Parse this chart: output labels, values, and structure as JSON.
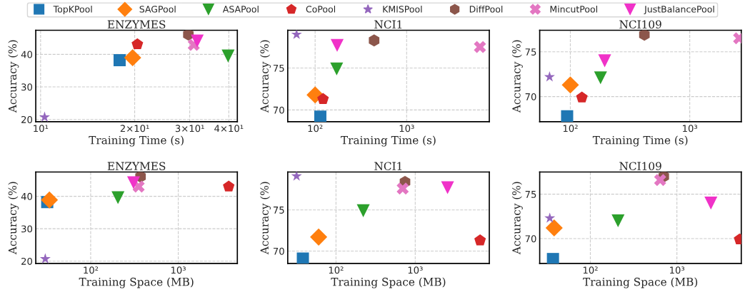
{
  "chart_data": [
    {
      "type": "scatter",
      "title": "ENZYMES",
      "xlabel": "Training Time (s)",
      "ylabel": "Accuracy (%)",
      "log": "x",
      "grid": true,
      "legend": "top",
      "xlim": [
        9.65,
        42.6
      ],
      "xticks": [
        {
          "value": 10,
          "label": "10¹"
        },
        {
          "value": 20,
          "label": "2×10¹"
        },
        {
          "value": 30,
          "label": "3×10¹"
        },
        {
          "value": 40,
          "label": "4×10¹"
        }
      ],
      "ylim": [
        19.3,
        47.4
      ],
      "yticks": [
        20,
        30,
        40
      ],
      "series": [
        {
          "name": "TopKPool",
          "color": "#1f77b4",
          "marker": "square",
          "x": [
            17.9
          ],
          "values": [
            38.2
          ]
        },
        {
          "name": "SAGPool",
          "color": "#ff7f0e",
          "marker": "diamond",
          "x": [
            19.7
          ],
          "values": [
            39.0
          ]
        },
        {
          "name": "ASAPool",
          "color": "#2ca02c",
          "marker": "triangle",
          "x": [
            39.8
          ],
          "values": [
            39.5
          ]
        },
        {
          "name": "CoPool",
          "color": "#d62728",
          "x": [
            20.4
          ],
          "values": [
            43.1
          ]
        },
        {
          "name": "KMISPool",
          "color": "#9467bd",
          "marker": "star",
          "x": [
            10.3
          ],
          "values": [
            20.7
          ]
        },
        {
          "name": "DiffPool",
          "color": "#8c564b",
          "x": [
            29.7
          ],
          "values": [
            46.1
          ]
        },
        {
          "name": "MincutPool",
          "color": "#e377c2",
          "marker": "cross",
          "x": [
            30.9
          ],
          "values": [
            42.9
          ]
        },
        {
          "name": "JustBalancePool",
          "color": "#f032c8",
          "marker": "triangle",
          "x": [
            31.7
          ],
          "values": [
            44.1
          ]
        }
      ]
    },
    {
      "type": "scatter",
      "title": "NCI1",
      "xlabel": "Training Time (s)",
      "ylabel": "Accuracy (%)",
      "log": "x",
      "grid": true,
      "xlim": [
        50.2,
        8000
      ],
      "xticks": [
        {
          "value": 100,
          "label": "10²"
        },
        {
          "value": 1000,
          "label": "10³"
        }
      ],
      "ylim": [
        68.6,
        79.5
      ],
      "yticks": [
        70,
        75
      ],
      "series": [
        {
          "color": "#1f77b4",
          "marker": "square",
          "x": [
            114
          ],
          "values": [
            69.2
          ]
        },
        {
          "color": "#ff7f0e",
          "marker": "diamond",
          "x": [
            100
          ],
          "values": [
            71.8
          ]
        },
        {
          "color": "#2ca02c",
          "marker": "triangle",
          "x": [
            172
          ],
          "values": [
            74.9
          ]
        },
        {
          "color": "#d62728",
          "x": [
            122
          ],
          "values": [
            71.3
          ]
        },
        {
          "color": "#9467bd",
          "marker": "star",
          "x": [
            62.7
          ],
          "values": [
            79.0
          ]
        },
        {
          "color": "#8c564b",
          "x": [
            441
          ],
          "values": [
            78.3
          ]
        },
        {
          "color": "#e377c2",
          "marker": "cross",
          "x": [
            6320
          ],
          "values": [
            77.5
          ]
        },
        {
          "color": "#f032c8",
          "marker": "triangle",
          "x": [
            174
          ],
          "values": [
            77.7
          ]
        }
      ]
    },
    {
      "type": "scatter",
      "title": "NCI109",
      "xlabel": "Training Time (s)",
      "ylabel": "Accuracy (%)",
      "log": "x",
      "grid": true,
      "xlim": [
        55.4,
        2700
      ],
      "xticks": [
        {
          "value": 100,
          "label": "10²"
        },
        {
          "value": 1000,
          "label": "10³"
        }
      ],
      "ylim": [
        67.2,
        77.4
      ],
      "yticks": [
        70,
        75
      ],
      "series": [
        {
          "color": "#1f77b4",
          "marker": "square",
          "x": [
            94
          ],
          "values": [
            67.8
          ]
        },
        {
          "color": "#ff7f0e",
          "marker": "diamond",
          "x": [
            100
          ],
          "values": [
            71.3
          ]
        },
        {
          "color": "#2ca02c",
          "marker": "triangle",
          "x": [
            179
          ],
          "values": [
            72.1
          ]
        },
        {
          "color": "#d62728",
          "x": [
            125
          ],
          "values": [
            69.9
          ]
        },
        {
          "color": "#9467bd",
          "marker": "star",
          "x": [
            67
          ],
          "values": [
            72.2
          ]
        },
        {
          "color": "#8c564b",
          "x": [
            417
          ],
          "values": [
            76.9
          ]
        },
        {
          "color": "#e377c2",
          "marker": "cross",
          "x": [
            2590
          ],
          "values": [
            76.5
          ]
        },
        {
          "color": "#f032c8",
          "marker": "triangle",
          "x": [
            194
          ],
          "values": [
            74.0
          ]
        }
      ]
    },
    {
      "type": "scatter",
      "title": "ENZYMES",
      "xlabel": "Training Space (MB)",
      "ylabel": "Accuracy (%)",
      "log": "x",
      "grid": true,
      "xlim": [
        23.6,
        4730
      ],
      "xticks": [
        {
          "value": 100,
          "label": "10²"
        },
        {
          "value": 1000,
          "label": "10³"
        }
      ],
      "ylim": [
        19.3,
        47.5
      ],
      "yticks": [
        20,
        30,
        40
      ],
      "series": [
        {
          "color": "#1f77b4",
          "marker": "square",
          "x": [
            31.9
          ],
          "values": [
            38.2
          ]
        },
        {
          "color": "#ff7f0e",
          "marker": "diamond",
          "x": [
            33.8
          ],
          "values": [
            38.9
          ]
        },
        {
          "color": "#2ca02c",
          "marker": "triangle",
          "x": [
            205
          ],
          "values": [
            39.6
          ]
        },
        {
          "color": "#d62728",
          "x": [
            3770
          ],
          "values": [
            43.0
          ]
        },
        {
          "color": "#9467bd",
          "marker": "star",
          "x": [
            30.3
          ],
          "values": [
            20.7
          ]
        },
        {
          "color": "#8c564b",
          "x": [
            371
          ],
          "values": [
            46.1
          ]
        },
        {
          "color": "#e377c2",
          "marker": "cross",
          "x": [
            353
          ],
          "values": [
            43.0
          ]
        },
        {
          "color": "#f032c8",
          "marker": "triangle",
          "x": [
            309
          ],
          "values": [
            44.2
          ]
        }
      ]
    },
    {
      "type": "scatter",
      "title": "NCI1",
      "xlabel": "Training Space (MB)",
      "ylabel": "Accuracy (%)",
      "log": "x",
      "grid": true,
      "xlim": [
        24.6,
        8610
      ],
      "xticks": [
        {
          "value": 100,
          "label": "10²"
        },
        {
          "value": 1000,
          "label": "10³"
        }
      ],
      "ylim": [
        68.5,
        79.6
      ],
      "yticks": [
        70,
        75
      ],
      "series": [
        {
          "color": "#1f77b4",
          "marker": "square",
          "x": [
            38.2
          ],
          "values": [
            69.1
          ]
        },
        {
          "color": "#ff7f0e",
          "marker": "diamond",
          "x": [
            60.4
          ],
          "values": [
            71.7
          ]
        },
        {
          "color": "#2ca02c",
          "marker": "triangle",
          "x": [
            221
          ],
          "values": [
            74.9
          ]
        },
        {
          "color": "#d62728",
          "x": [
            6590
          ],
          "values": [
            71.3
          ]
        },
        {
          "color": "#9467bd",
          "marker": "star",
          "x": [
            31.8
          ],
          "values": [
            79.1
          ]
        },
        {
          "color": "#8c564b",
          "x": [
            743
          ],
          "values": [
            78.4
          ]
        },
        {
          "color": "#e377c2",
          "marker": "cross",
          "x": [
            695
          ],
          "values": [
            77.6
          ]
        },
        {
          "color": "#f032c8",
          "marker": "triangle",
          "x": [
            2560
          ],
          "values": [
            77.7
          ]
        }
      ]
    },
    {
      "type": "scatter",
      "title": "NCI109",
      "xlabel": "Training Space (MB)",
      "ylabel": "Accuracy (%)",
      "log": "x",
      "grid": true,
      "xlim": [
        26.0,
        5540
      ],
      "xticks": [
        {
          "value": 100,
          "label": "10²"
        },
        {
          "value": 1000,
          "label": "10³"
        }
      ],
      "ylim": [
        67.2,
        77.5
      ],
      "yticks": [
        70,
        75
      ],
      "series": [
        {
          "color": "#1f77b4",
          "marker": "square",
          "x": [
            37.0
          ],
          "values": [
            67.7
          ]
        },
        {
          "color": "#ff7f0e",
          "marker": "diamond",
          "x": [
            38.2
          ],
          "values": [
            71.2
          ]
        },
        {
          "color": "#2ca02c",
          "marker": "triangle",
          "x": [
            209
          ],
          "values": [
            72.0
          ]
        },
        {
          "color": "#d62728",
          "x": [
            5300
          ],
          "values": [
            69.9
          ]
        },
        {
          "color": "#9467bd",
          "marker": "star",
          "x": [
            34.0
          ],
          "values": [
            72.3
          ]
        },
        {
          "color": "#8c564b",
          "x": [
            705
          ],
          "values": [
            77.0
          ]
        },
        {
          "color": "#e377c2",
          "marker": "cross",
          "x": [
            640
          ],
          "values": [
            76.6
          ]
        },
        {
          "color": "#f032c8",
          "marker": "triangle",
          "x": [
            2470
          ],
          "values": [
            74.0
          ]
        }
      ]
    }
  ]
}
